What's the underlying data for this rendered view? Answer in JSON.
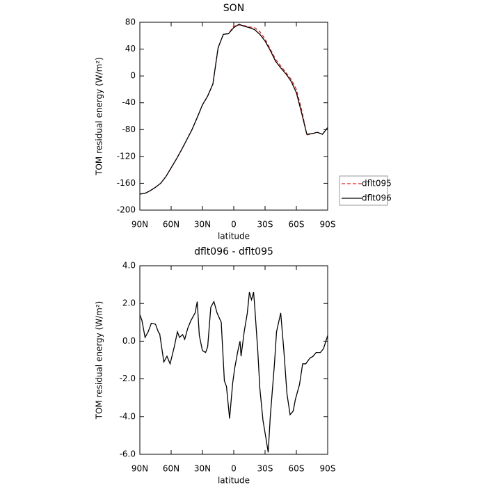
{
  "chart_data": [
    {
      "type": "line",
      "title": "SON",
      "xlabel": "latitude",
      "ylabel": "TOM residual energy (W/m²)",
      "x": [
        90,
        85,
        80,
        75,
        70,
        65,
        60,
        55,
        50,
        45,
        40,
        35,
        30,
        25,
        20,
        15,
        10,
        5,
        0,
        -5,
        -10,
        -15,
        -20,
        -25,
        -30,
        -35,
        -40,
        -45,
        -50,
        -55,
        -60,
        -65,
        -70,
        -75,
        -80,
        -85,
        -90
      ],
      "series": [
        {
          "name": "dflt095",
          "color": "#e02020",
          "linestyle": "dashed",
          "values": [
            -176,
            -175,
            -171,
            -166,
            -160,
            -150,
            -137,
            -124,
            -110,
            -95,
            -80,
            -62,
            -43,
            -30,
            -12,
            42,
            62,
            63,
            74,
            76,
            75,
            73,
            72,
            66,
            55,
            40,
            25,
            15,
            5,
            -5,
            -20,
            -50,
            -88,
            -86,
            -84,
            -87,
            -77
          ]
        },
        {
          "name": "dflt096",
          "color": "#000000",
          "linestyle": "solid",
          "values": [
            -176,
            -175,
            -171,
            -166,
            -160,
            -150,
            -137,
            -124,
            -110,
            -95,
            -80,
            -62,
            -43,
            -30,
            -12,
            42,
            62,
            63,
            72,
            77,
            74,
            72,
            69,
            62,
            52,
            38,
            22,
            12,
            3,
            -8,
            -25,
            -55,
            -87,
            -86,
            -84,
            -87,
            -77
          ]
        }
      ],
      "xlim": [
        90,
        -90
      ],
      "xticks": [
        {
          "value": 90,
          "label": "90N"
        },
        {
          "value": 60,
          "label": "60N"
        },
        {
          "value": 30,
          "label": "30N"
        },
        0,
        {
          "value": -30,
          "label": "30S"
        },
        {
          "value": -60,
          "label": "60S"
        },
        {
          "value": -90,
          "label": "90S"
        }
      ],
      "ylim": [
        -200,
        80
      ],
      "yticks": [
        80,
        40,
        0,
        -40,
        -80,
        -120,
        -160,
        -200
      ],
      "legend": true,
      "legend_position": "right"
    },
    {
      "type": "line",
      "title": "dflt096 - dflt095",
      "xlabel": "latitude",
      "ylabel": "TOM residual energy (W/m²)",
      "x": [
        90,
        88,
        85,
        82,
        79,
        75,
        72,
        71,
        67,
        64,
        61,
        57,
        54,
        52,
        49,
        47,
        44,
        41,
        37,
        35,
        33,
        30,
        27,
        25,
        22,
        19,
        16,
        12,
        9,
        7,
        4,
        1,
        -1,
        -4,
        -6,
        -7,
        -10,
        -13,
        -15,
        -17,
        -19,
        -20,
        -23,
        -25,
        -28,
        -31,
        -33,
        -35,
        -39,
        -41,
        -45,
        -48,
        -51,
        -54,
        -57,
        -59,
        -63,
        -66,
        -69,
        -73,
        -76,
        -79,
        -83,
        -86,
        -90
      ],
      "series": [
        {
          "color": "#000000",
          "linestyle": "solid",
          "values": [
            1.4,
            1.1,
            0.2,
            0.5,
            0.95,
            0.9,
            0.45,
            0.4,
            -1.1,
            -0.8,
            -1.2,
            -0.3,
            0.5,
            0.2,
            0.35,
            0.1,
            0.7,
            1.1,
            1.5,
            2.1,
            0.3,
            -0.5,
            -0.6,
            -0.3,
            1.8,
            2.1,
            1.5,
            1.0,
            -2.1,
            -2.4,
            -4.1,
            -2.2,
            -1.4,
            -0.5,
            0.0,
            -0.8,
            0.5,
            1.5,
            2.6,
            2.2,
            2.6,
            1.9,
            -0.5,
            -2.5,
            -4.2,
            -5.2,
            -5.9,
            -4.0,
            -1.2,
            0.5,
            1.5,
            -0.5,
            -2.8,
            -3.9,
            -3.7,
            -3.1,
            -2.3,
            -1.2,
            -1.2,
            -0.9,
            -0.8,
            -0.6,
            -0.6,
            -0.4,
            0.3
          ]
        }
      ],
      "xlim": [
        90,
        -90
      ],
      "xticks": [
        {
          "value": 90,
          "label": "90N"
        },
        {
          "value": 60,
          "label": "60N"
        },
        {
          "value": 30,
          "label": "30N"
        },
        0,
        {
          "value": -30,
          "label": "30S"
        },
        {
          "value": -60,
          "label": "60S"
        },
        {
          "value": -90,
          "label": "90S"
        }
      ],
      "ylim": [
        -6,
        4
      ],
      "yticks": [
        {
          "value": 4,
          "label": "4.0"
        },
        {
          "value": 2,
          "label": "2.0"
        },
        {
          "value": 0,
          "label": "0.0"
        },
        {
          "value": -2,
          "label": "-2.0"
        },
        {
          "value": -4,
          "label": "-4.0"
        },
        {
          "value": -6,
          "label": "-6.0"
        }
      ],
      "legend": false
    }
  ]
}
